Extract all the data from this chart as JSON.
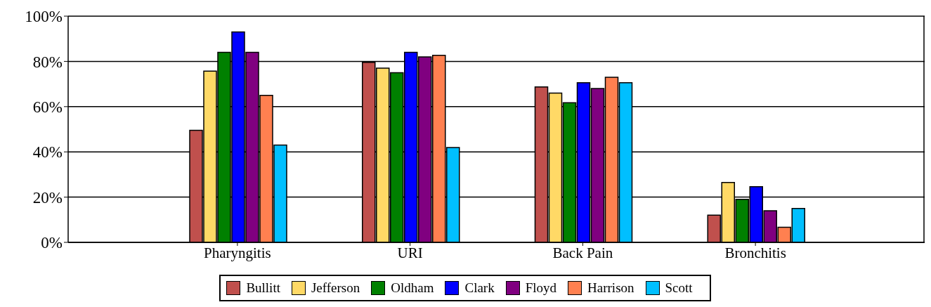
{
  "chart_data": {
    "type": "bar",
    "categories": [
      "Pharyngitis",
      "URI",
      "Back Pain",
      "Bronchitis"
    ],
    "series": [
      {
        "name": "Bullitt",
        "color": "#c0504d",
        "values": [
          49.5,
          79.6,
          68.7,
          12
        ]
      },
      {
        "name": "Jefferson",
        "color": "#ffd966",
        "values": [
          75.7,
          77,
          66,
          26.5
        ]
      },
      {
        "name": "Oldham",
        "color": "#008000",
        "values": [
          84,
          75,
          61.7,
          19
        ]
      },
      {
        "name": "Clark",
        "color": "#0000ff",
        "values": [
          93,
          84,
          70.6,
          24.6
        ]
      },
      {
        "name": "Floyd",
        "color": "#800080",
        "values": [
          84,
          82,
          68,
          14
        ]
      },
      {
        "name": "Harrison",
        "color": "#ff8050",
        "values": [
          65,
          82.7,
          73,
          6.7
        ]
      },
      {
        "name": "Scott",
        "color": "#00bfff",
        "values": [
          43,
          41.9,
          70.6,
          15
        ]
      }
    ],
    "ylim": [
      0,
      100
    ],
    "yticks": [
      {
        "value": 0,
        "label": "0%"
      },
      {
        "value": 20,
        "label": "20%"
      },
      {
        "value": 40,
        "label": "40%"
      },
      {
        "value": 60,
        "label": "60%"
      },
      {
        "value": 80,
        "label": "80%"
      },
      {
        "value": 100,
        "label": "100%"
      }
    ],
    "grid": "y",
    "legend": "bottom"
  }
}
